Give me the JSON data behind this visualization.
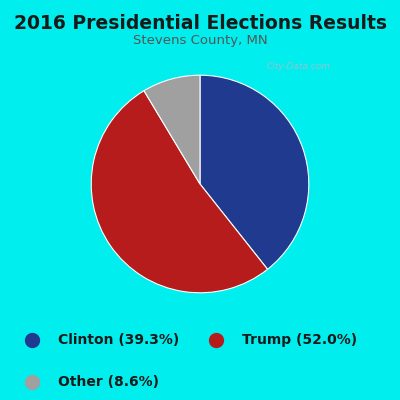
{
  "title": "2016 Presidential Elections Results",
  "subtitle": "Stevens County, MN",
  "title_color": "#1a1a1a",
  "title_fontsize": 13.5,
  "subtitle_fontsize": 9.5,
  "subtitle_color": "#555555",
  "slices": [
    39.3,
    52.0,
    8.6
  ],
  "labels": [
    "Clinton (39.3%)",
    "Trump (52.0%)",
    "Other (8.6%)"
  ],
  "colors": [
    "#1f3a8f",
    "#b71c1c",
    "#a0a0a0"
  ],
  "startangle": 90,
  "legend_fontsize": 10,
  "background_outer": "#00eeee",
  "background_inner": "#eaf5ea",
  "watermark": "City-Data.com"
}
